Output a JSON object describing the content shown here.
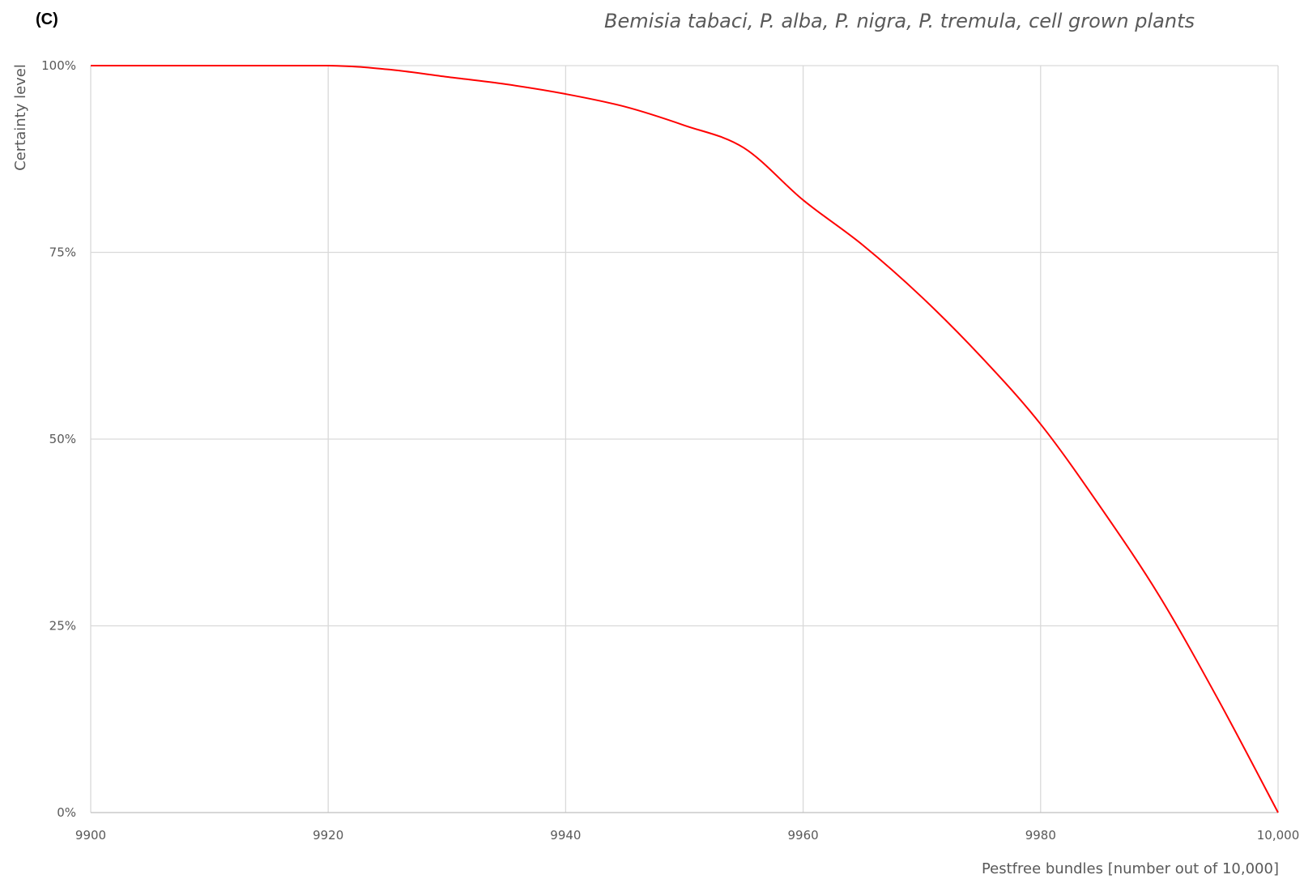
{
  "panel_label": "(C)",
  "chart_data": {
    "type": "line",
    "title": "Bemisia tabaci, P. alba, P. nigra, P. tremula, cell grown plants",
    "xlabel": "Pestfree bundles [number out of 10,000]",
    "ylabel": "Certainty level",
    "xlim": [
      9900,
      10000
    ],
    "ylim": [
      0,
      1
    ],
    "x_ticks": [
      9900,
      9920,
      9940,
      9960,
      9980,
      10000
    ],
    "x_tick_labels": [
      "9900",
      "9920",
      "9940",
      "9960",
      "9980",
      "10,000"
    ],
    "y_ticks": [
      0,
      0.25,
      0.5,
      0.75,
      1
    ],
    "y_tick_labels": [
      "0%",
      "25%",
      "50%",
      "75%",
      "100%"
    ],
    "grid": true,
    "legend": "none",
    "series": [
      {
        "color": "#ff0000",
        "x": [
          9900,
          9910,
          9920,
          9925,
          9930,
          9935,
          9940,
          9945,
          9950,
          9955,
          9960,
          9965,
          9970,
          9975,
          9980,
          9985,
          9990,
          9995,
          10000
        ],
        "y": [
          1.0,
          1.0,
          1.0,
          0.995,
          0.985,
          0.975,
          0.962,
          0.945,
          0.92,
          0.89,
          0.82,
          0.76,
          0.69,
          0.61,
          0.52,
          0.41,
          0.29,
          0.15,
          0.0
        ]
      }
    ]
  }
}
